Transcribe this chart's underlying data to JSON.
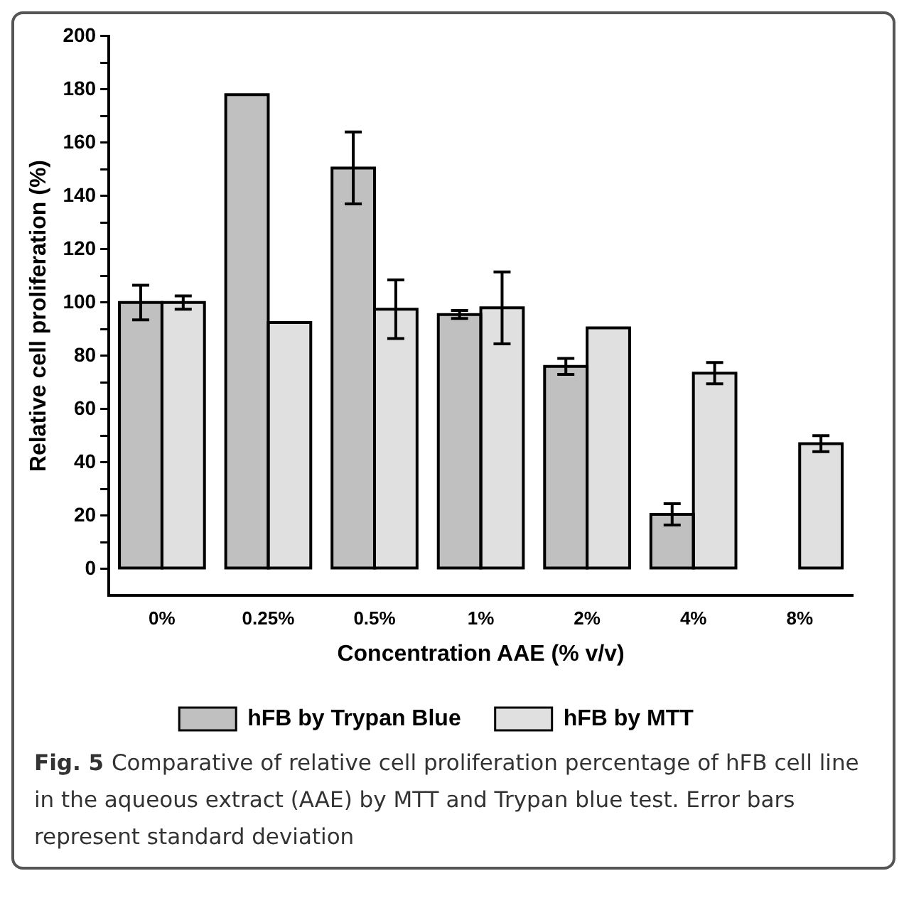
{
  "chart_data": {
    "type": "bar",
    "xlabel": "Concentration AAE (% v/v)",
    "ylabel": "Relative cell proliferation (%)",
    "categories": [
      "0%",
      "0.25%",
      "0.5%",
      "1%",
      "2%",
      "4%",
      "8%"
    ],
    "series": [
      {
        "name": "hFB by Trypan Blue",
        "color": "#c0c0c0",
        "values": [
          100,
          178,
          150.5,
          95.5,
          76,
          20.5,
          0
        ],
        "errors": [
          6.5,
          null,
          13.5,
          1.5,
          3,
          4,
          null
        ]
      },
      {
        "name": "hFB by MTT",
        "color": "#e0e0e0",
        "values": [
          100,
          92.5,
          97.5,
          98,
          90.5,
          73.5,
          47
        ],
        "errors": [
          2.5,
          null,
          11,
          13.5,
          null,
          4,
          3
        ]
      }
    ],
    "ylim": [
      -10,
      200
    ],
    "yticks": [
      0,
      {
        "value": 10,
        "label": null
      },
      20,
      {
        "value": 30,
        "label": null
      },
      40,
      {
        "value": 50,
        "label": null
      },
      60,
      {
        "value": 70,
        "label": null
      },
      80,
      {
        "value": 90,
        "label": null
      },
      100,
      {
        "value": 110,
        "label": null
      },
      120,
      {
        "value": 130,
        "label": null
      },
      140,
      {
        "value": 150,
        "label": null
      },
      160,
      {
        "value": 170,
        "label": null
      },
      180,
      {
        "value": 190,
        "label": null
      },
      200
    ],
    "grid": false,
    "legend": "bottom",
    "annotations": [
      "Fig. 5",
      "Comparative of relative cell proliferation percentage of hFB cell line in the aqueous extract (AAE) by MTT and Trypan blue test. Error bars represent standard deviation"
    ]
  }
}
